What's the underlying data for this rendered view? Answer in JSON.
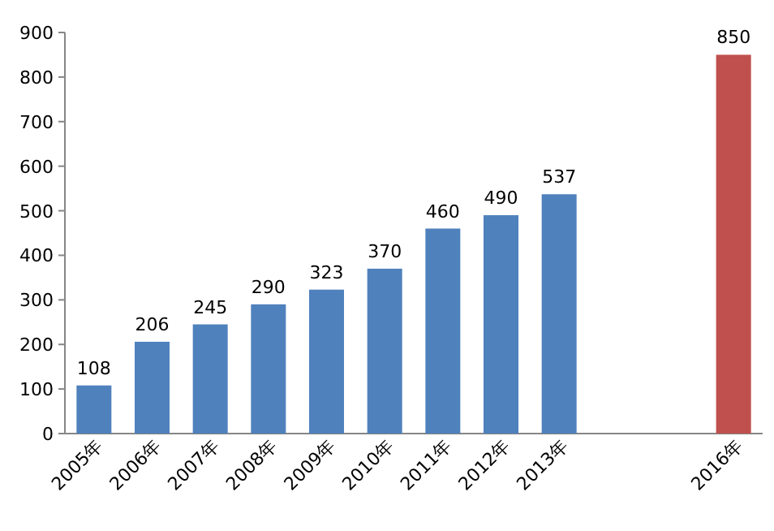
{
  "chart_data": {
    "type": "bar",
    "categories": [
      "2005年",
      "2006年",
      "2007年",
      "2008年",
      "2009年",
      "2010年",
      "2011年",
      "2012年",
      "2013年",
      null,
      null,
      "2016年"
    ],
    "values": [
      108,
      206,
      245,
      290,
      323,
      370,
      460,
      490,
      537,
      null,
      null,
      850
    ],
    "colors": [
      "#4f81bd",
      "#4f81bd",
      "#4f81bd",
      "#4f81bd",
      "#4f81bd",
      "#4f81bd",
      "#4f81bd",
      "#4f81bd",
      "#4f81bd",
      "#4f81bd",
      "#4f81bd",
      "#c0504d"
    ],
    "ylim": [
      0,
      900
    ],
    "yticks": [
      0,
      100,
      200,
      300,
      400,
      500,
      600,
      700,
      800,
      900
    ],
    "data_labels": true
  }
}
